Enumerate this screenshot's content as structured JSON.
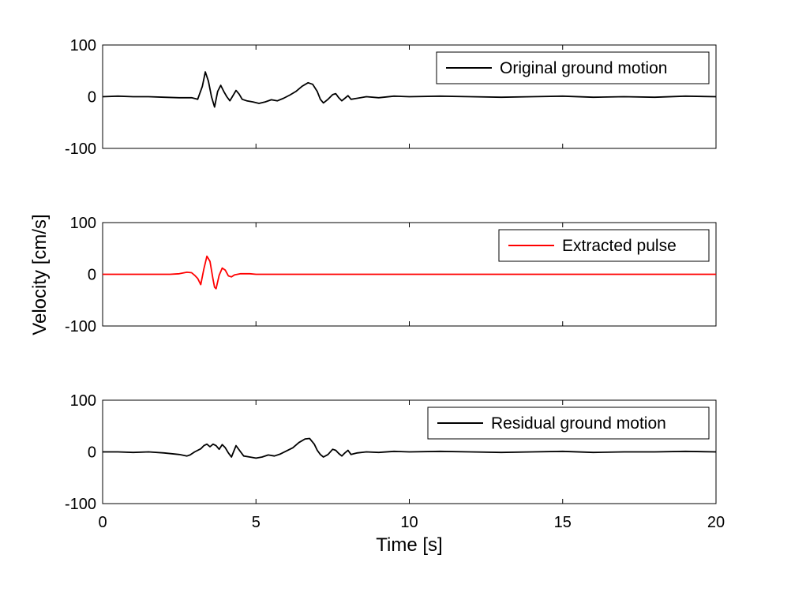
{
  "chart_data": {
    "type": "line",
    "xlabel": "Time [s]",
    "ylabel": "Velocity [cm/s]",
    "xlim": [
      0,
      20
    ],
    "xticks": [
      "0",
      "5",
      "10",
      "15",
      "20"
    ],
    "grid": false,
    "panels": [
      {
        "ylim": [
          -100,
          100
        ],
        "yticks": [
          "100",
          "0",
          "-100"
        ],
        "legend_position": "top-right",
        "series": [
          {
            "name": "Original ground motion",
            "color": "#000000",
            "x": [
              0,
              0.5,
              1.0,
              1.5,
              2.0,
              2.5,
              2.9,
              3.1,
              3.25,
              3.35,
              3.45,
              3.55,
              3.65,
              3.75,
              3.85,
              3.95,
              4.05,
              4.15,
              4.25,
              4.35,
              4.45,
              4.55,
              4.7,
              4.9,
              5.1,
              5.3,
              5.5,
              5.7,
              5.9,
              6.1,
              6.3,
              6.5,
              6.7,
              6.85,
              7.0,
              7.1,
              7.2,
              7.35,
              7.5,
              7.6,
              7.7,
              7.8,
              7.9,
              8.0,
              8.1,
              8.3,
              8.6,
              9.0,
              9.5,
              10.0,
              11.0,
              12.0,
              13.0,
              14.0,
              15.0,
              16.0,
              17.0,
              18.0,
              19.0,
              20.0
            ],
            "y": [
              0,
              1,
              0,
              0,
              -1,
              -2,
              -2,
              -5,
              20,
              48,
              30,
              0,
              -20,
              10,
              22,
              10,
              0,
              -8,
              2,
              12,
              5,
              -5,
              -8,
              -10,
              -13,
              -10,
              -6,
              -8,
              -3,
              3,
              10,
              20,
              27,
              24,
              10,
              -5,
              -12,
              -5,
              4,
              6,
              -2,
              -8,
              -3,
              2,
              -5,
              -3,
              0,
              -2,
              1,
              0,
              1,
              0,
              -1,
              0,
              1,
              -1,
              0,
              -1,
              1,
              0
            ]
          }
        ]
      },
      {
        "ylim": [
          -100,
          100
        ],
        "yticks": [
          "100",
          "0",
          "-100"
        ],
        "legend_position": "top-right",
        "series": [
          {
            "name": "Extracted pulse",
            "color": "#ff0000",
            "x": [
              0,
              2.2,
              2.5,
              2.75,
              2.9,
              3.0,
              3.1,
              3.2,
              3.3,
              3.4,
              3.5,
              3.6,
              3.65,
              3.7,
              3.8,
              3.9,
              4.0,
              4.1,
              4.2,
              4.3,
              4.5,
              4.8,
              5.0,
              10.0,
              15.0,
              20.0
            ],
            "y": [
              0,
              0,
              1,
              4,
              3,
              -2,
              -8,
              -20,
              10,
              35,
              25,
              -10,
              -25,
              -28,
              -2,
              12,
              8,
              -3,
              -5,
              -1,
              1,
              1,
              0,
              0,
              0,
              0
            ]
          }
        ]
      },
      {
        "ylim": [
          -100,
          100
        ],
        "yticks": [
          "100",
          "0",
          "-100"
        ],
        "legend_position": "top-right",
        "series": [
          {
            "name": "Residual ground motion",
            "color": "#000000",
            "x": [
              0,
              0.5,
              1.0,
              1.5,
              2.0,
              2.5,
              2.75,
              2.85,
              3.0,
              3.2,
              3.3,
              3.4,
              3.5,
              3.6,
              3.7,
              3.8,
              3.9,
              4.0,
              4.1,
              4.2,
              4.35,
              4.5,
              4.6,
              4.8,
              5.0,
              5.2,
              5.4,
              5.6,
              5.8,
              6.0,
              6.2,
              6.4,
              6.6,
              6.75,
              6.9,
              7.0,
              7.1,
              7.2,
              7.35,
              7.5,
              7.6,
              7.7,
              7.8,
              7.9,
              8.0,
              8.1,
              8.3,
              8.6,
              9.0,
              9.5,
              10.0,
              11.0,
              12.0,
              13.0,
              14.0,
              15.0,
              16.0,
              17.0,
              18.0,
              19.0,
              20.0
            ],
            "y": [
              0,
              0,
              -1,
              0,
              -2,
              -5,
              -8,
              -6,
              0,
              6,
              12,
              15,
              10,
              15,
              12,
              5,
              14,
              8,
              -2,
              -10,
              12,
              0,
              -8,
              -10,
              -12,
              -10,
              -6,
              -8,
              -4,
              2,
              8,
              18,
              25,
              26,
              15,
              3,
              -5,
              -10,
              -5,
              5,
              3,
              -3,
              -8,
              -2,
              3,
              -5,
              -2,
              0,
              -1,
              1,
              0,
              1,
              0,
              -1,
              0,
              1,
              -1,
              0,
              0,
              1,
              0
            ]
          }
        ]
      }
    ]
  }
}
